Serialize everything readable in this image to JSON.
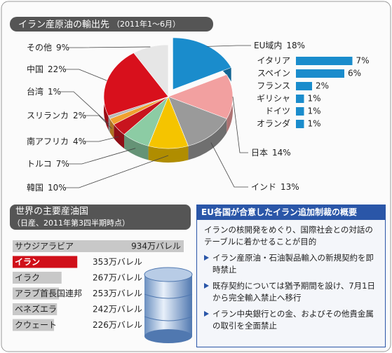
{
  "chart_data": [
    {
      "type": "pie",
      "title": "イラン産原油の輸出先",
      "subtitle": "（2011年1〜6月）",
      "categories": [
        "EU域内",
        "日本",
        "インド",
        "韓国",
        "トルコ",
        "南アフリカ",
        "スリランカ",
        "台湾",
        "中国",
        "その他"
      ],
      "values": [
        18,
        14,
        13,
        10,
        7,
        4,
        2,
        1,
        22,
        9
      ],
      "value_labels": [
        "18%",
        "14%",
        "13%",
        "10%",
        "7%",
        "4%",
        "2%",
        "1%",
        "22%",
        "9%"
      ],
      "colors": [
        "#1a8ccc",
        "#f2a0a0",
        "#9a9a9a",
        "#f5c400",
        "#8ccca4",
        "#c8141e",
        "#f0a030",
        "#b8b8b8",
        "#d8101c",
        "#e6e6e6"
      ]
    },
    {
      "type": "bar",
      "categories": [
        "イタリア",
        "スペイン",
        "フランス",
        "ギリシャ",
        "ドイツ",
        "オランダ"
      ],
      "values": [
        7,
        6,
        2,
        1,
        1,
        1
      ],
      "value_labels": [
        "7%",
        "6%",
        "2%",
        "1%",
        "1%",
        "1%"
      ],
      "color": "#1a8ccc"
    },
    {
      "type": "bar",
      "title": "世界の主要産油国",
      "subtitle": "（日産、2011年第3四半期時点）",
      "categories": [
        "サウジアラビア",
        "イラン",
        "イラク",
        "アラブ首長国連邦",
        "ベネズエラ",
        "クウェート"
      ],
      "values": [
        934,
        353,
        267,
        253,
        242,
        226
      ],
      "value_labels": [
        "934万バレル",
        "353万バレル",
        "267万バレル",
        "253万バレル",
        "242万バレル",
        "226万バレル"
      ],
      "colors": [
        "#c8c8c8",
        "#d0101a",
        "#c8c8c8",
        "#c8c8c8",
        "#c8c8c8",
        "#c8c8c8"
      ]
    }
  ],
  "panel": {
    "title": "EU各国が合意したイラン追加制裁の概要",
    "text": "イランの核開発をめぐり、国際社会との対話のテーブルに着かせることが目的",
    "items": [
      "イラン産原油・石油製品輸入の新規契約を即時禁止",
      "既存契約については猶予期間を設け、7月1日から完全輸入禁止へ移行",
      "イラン中央銀行との金、およびその他貴金属の取引を全面禁止"
    ]
  }
}
